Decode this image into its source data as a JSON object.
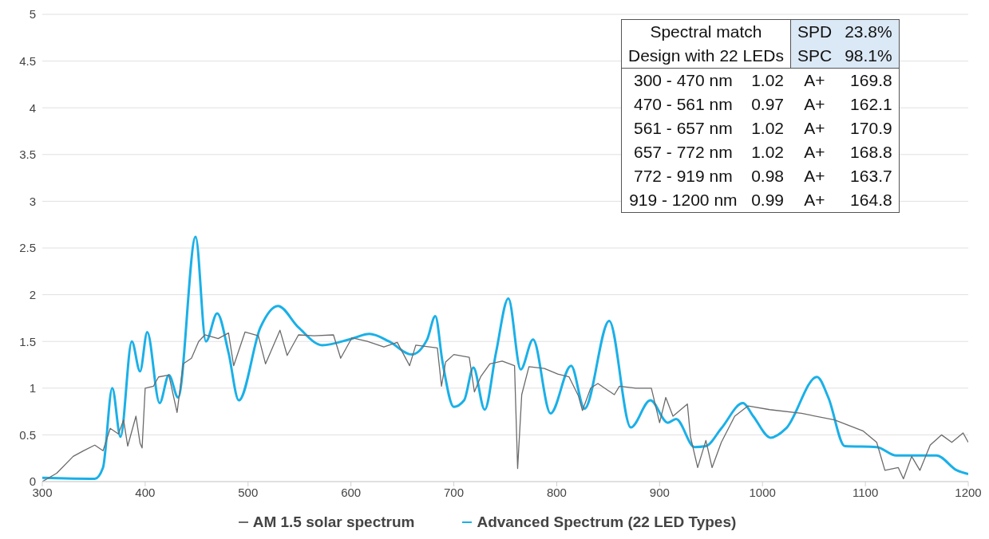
{
  "chart_data": {
    "type": "line",
    "xlim": [
      300,
      1200
    ],
    "xticks": [
      300,
      400,
      500,
      600,
      700,
      800,
      900,
      1000,
      1100,
      1200
    ],
    "ylim": [
      0,
      5
    ],
    "yticks": [
      0,
      0.5,
      1,
      1.5,
      2,
      2.5,
      3,
      3.5,
      4,
      4.5,
      5
    ],
    "grid": "y",
    "legend": "bottom",
    "marker": "none",
    "line_style": "solid",
    "annotations": [
      "Spectral match",
      "SPD",
      "23.8%",
      "Design with 22 LEDs",
      "SPC",
      "98.1%",
      "300 - 470 nm",
      "1.02",
      "A+",
      "169.8",
      "470 - 561 nm",
      "0.97",
      "A+",
      "162.1",
      "561 - 657 nm",
      "1.02",
      "A+",
      "170.9",
      "657 - 772 nm",
      "1.02",
      "A+",
      "168.8",
      "772 - 919 nm",
      "0.98",
      "A+",
      "163.7",
      "919 - 1200 nm",
      "0.99",
      "A+",
      "164.8"
    ],
    "series": [
      {
        "name": "AM 1.5 solar spectrum",
        "color": "#6b6b6b",
        "x": [
          300,
          314,
          330,
          340,
          351,
          359,
          366,
          374,
          379,
          383,
          391,
          395,
          397,
          400,
          408,
          413,
          423,
          431,
          437,
          445,
          452,
          458,
          471,
          481,
          486,
          497,
          510,
          517,
          531,
          538,
          549,
          564,
          583,
          590,
          601,
          616,
          632,
          645,
          657,
          663,
          684,
          688,
          692,
          700,
          715,
          720,
          726,
          735,
          747,
          759,
          762,
          766,
          773,
          788,
          801,
          812,
          821,
          825,
          833,
          840,
          856,
          861,
          877,
          892,
          900,
          906,
          913,
          927,
          930,
          937,
          945,
          951,
          960,
          973,
          986,
          1007,
          1038,
          1070,
          1098,
          1111,
          1119,
          1132,
          1137,
          1145,
          1153,
          1163,
          1174,
          1184,
          1195,
          1200
        ],
        "values": [
          0,
          0.09,
          0.27,
          0.33,
          0.39,
          0.33,
          0.57,
          0.51,
          0.66,
          0.38,
          0.7,
          0.41,
          0.36,
          1.0,
          1.02,
          1.12,
          1.14,
          0.74,
          1.26,
          1.32,
          1.5,
          1.57,
          1.53,
          1.59,
          1.24,
          1.6,
          1.56,
          1.26,
          1.62,
          1.35,
          1.57,
          1.56,
          1.57,
          1.32,
          1.54,
          1.5,
          1.44,
          1.49,
          1.24,
          1.46,
          1.43,
          1.02,
          1.28,
          1.36,
          1.33,
          0.96,
          1.12,
          1.26,
          1.29,
          1.24,
          0.14,
          0.93,
          1.23,
          1.21,
          1.15,
          1.12,
          0.92,
          0.76,
          1.0,
          1.05,
          0.93,
          1.02,
          1.0,
          1.0,
          0.63,
          0.9,
          0.7,
          0.83,
          0.48,
          0.15,
          0.44,
          0.15,
          0.42,
          0.7,
          0.81,
          0.77,
          0.73,
          0.66,
          0.54,
          0.42,
          0.12,
          0.15,
          0.03,
          0.27,
          0.12,
          0.39,
          0.5,
          0.42,
          0.52,
          0.42
        ]
      },
      {
        "name": "Advanced Spectrum (22 LED Types)",
        "color": "#1ab0e8",
        "x": [
          300,
          351,
          359,
          368,
          376,
          387,
          395,
          402,
          414,
          423,
          432,
          449,
          459,
          470,
          481,
          491,
          512,
          529,
          549,
          572,
          601,
          618,
          637,
          659,
          674,
          682,
          689,
          700,
          710,
          719,
          730,
          741,
          753,
          765,
          777,
          794,
          814,
          827,
          851,
          872,
          891,
          908,
          916,
          934,
          945,
          960,
          981,
          991,
          1008,
          1023,
          1053,
          1064,
          1080,
          1111,
          1130,
          1169,
          1189,
          1200
        ],
        "values": [
          0.04,
          0.03,
          0.15,
          1.0,
          0.48,
          1.5,
          1.18,
          1.6,
          0.84,
          1.14,
          0.9,
          2.62,
          1.5,
          1.8,
          1.38,
          0.87,
          1.65,
          1.88,
          1.65,
          1.46,
          1.53,
          1.58,
          1.5,
          1.36,
          1.52,
          1.77,
          1.28,
          0.8,
          0.87,
          1.22,
          0.77,
          1.38,
          1.96,
          1.2,
          1.52,
          0.73,
          1.24,
          0.78,
          1.72,
          0.58,
          0.87,
          0.63,
          0.67,
          0.37,
          0.38,
          0.57,
          0.84,
          0.7,
          0.47,
          0.57,
          1.12,
          0.9,
          0.38,
          0.37,
          0.28,
          0.28,
          0.12,
          0.08
        ]
      }
    ]
  }
}
